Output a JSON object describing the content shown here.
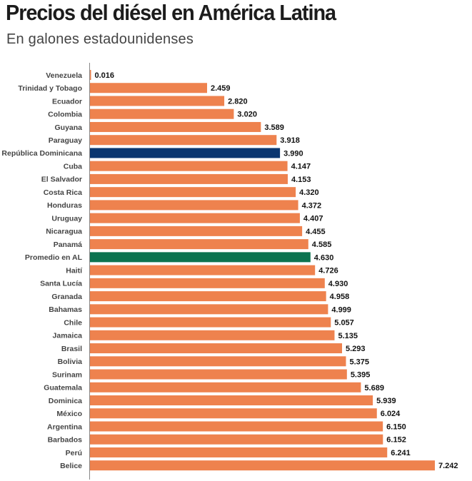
{
  "header": {
    "title": "Precios del diésel en América Latina",
    "subtitle": "En galones estadounidenses"
  },
  "colors": {
    "default_bar": "#ee824e",
    "highlight_country": "#0a3670",
    "average": "#0b7350",
    "axis": "#888888"
  },
  "chart_data": {
    "type": "bar",
    "orientation": "horizontal",
    "title": "Precios del diésel en América Latina",
    "subtitle": "En galones estadounidenses",
    "xlabel": "",
    "ylabel": "",
    "xlim": [
      0,
      7.242
    ],
    "grid": false,
    "legend": "none",
    "categories": [
      "Venezuela",
      "Trinidad y Tobago",
      "Ecuador",
      "Colombia",
      "Guyana",
      "Paraguay",
      "República Dominicana",
      "Cuba",
      "El Salvador",
      "Costa Rica",
      "Honduras",
      "Uruguay",
      "Nicaragua",
      "Panamá",
      "Promedio en AL",
      "Haití",
      "Santa Lucía",
      "Granada",
      "Bahamas",
      "Chile",
      "Jamaica",
      "Brasil",
      "Bolivia",
      "Surinam",
      "Guatemala",
      "Dominica",
      "México",
      "Argentina",
      "Barbados",
      "Perú",
      "Belice"
    ],
    "values": [
      0.016,
      2.459,
      2.82,
      3.02,
      3.589,
      3.918,
      3.99,
      4.147,
      4.153,
      4.32,
      4.372,
      4.407,
      4.455,
      4.585,
      4.63,
      4.726,
      4.93,
      4.958,
      4.999,
      5.057,
      5.135,
      5.293,
      5.375,
      5.395,
      5.689,
      5.939,
      6.024,
      6.15,
      6.152,
      6.241,
      7.242
    ],
    "value_labels": [
      "0.016",
      "2.459",
      "2.820",
      "3.020",
      "3.589",
      "3.918",
      "3.990",
      "4.147",
      "4.153",
      "4.320",
      "4.372",
      "4.407",
      "4.455",
      "4.585",
      "4.630",
      "4.726",
      "4.930",
      "4.958",
      "4.999",
      "5.057",
      "5.135",
      "5.293",
      "5.375",
      "5.395",
      "5.689",
      "5.939",
      "6.024",
      "6.150",
      "6.152",
      "6.241",
      "7.242"
    ],
    "highlights": {
      "República Dominicana": "highlight_country",
      "Promedio en AL": "average"
    }
  }
}
